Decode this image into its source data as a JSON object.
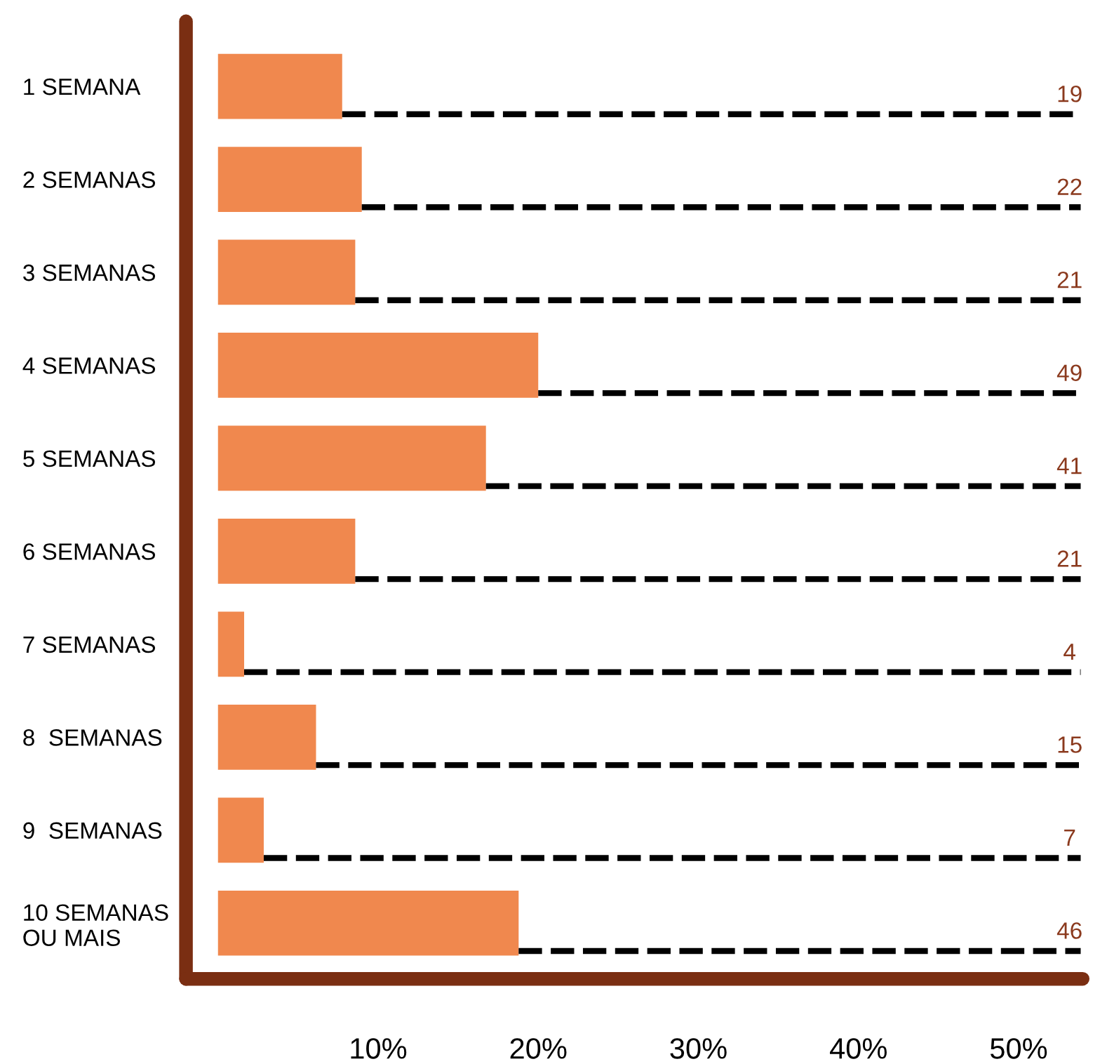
{
  "chart_data": {
    "type": "bar",
    "orientation": "horizontal",
    "categories": [
      "1 SEMANA",
      "2 SEMANAS",
      "3 SEMANAS",
      "4 SEMANAS",
      "5 SEMANAS",
      "6 SEMANAS",
      "7 SEMANAS",
      "8  SEMANAS",
      "9  SEMANAS",
      "10 SEMANAS\nOU MAIS"
    ],
    "values": [
      19,
      22,
      21,
      49,
      41,
      21,
      4,
      15,
      7,
      46
    ],
    "data_labels": true,
    "color": "#f0884e",
    "xlim": [
      -4.9,
      132.3
    ],
    "x2lim": [
      -2,
      54
    ],
    "x2ticks": [
      {
        "value": 10,
        "label": "10%"
      },
      {
        "value": 20,
        "label": "20%"
      },
      {
        "value": 30,
        "label": "30%"
      },
      {
        "value": 40,
        "label": "40%"
      },
      {
        "value": 50,
        "label": "50%"
      }
    ],
    "tick_labels": "y",
    "grid": false,
    "legend": false
  }
}
